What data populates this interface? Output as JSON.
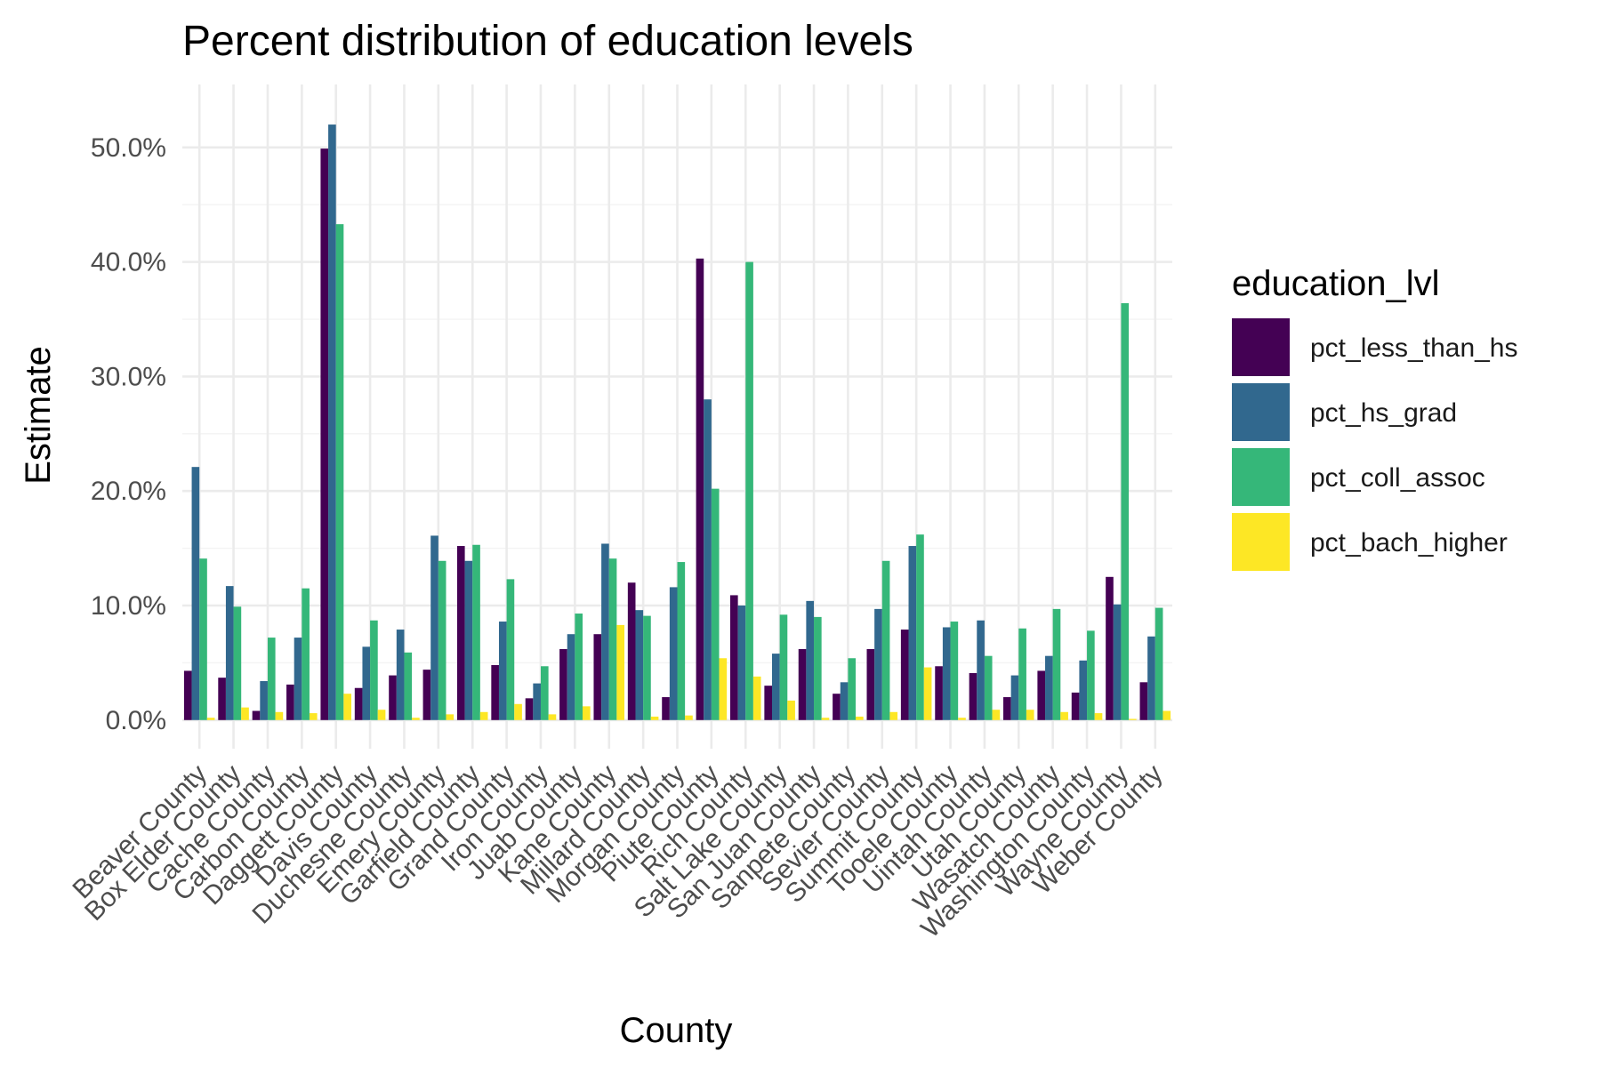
{
  "chart_data": {
    "type": "bar",
    "title": "Percent distribution of education levels",
    "xlabel": "County",
    "ylabel": "Estimate",
    "ylim": [
      -2.5,
      55.5
    ],
    "yticks": [
      0,
      10,
      20,
      30,
      40,
      50
    ],
    "ytick_labels": [
      "0.0%",
      "10.0%",
      "20.0%",
      "30.0%",
      "40.0%",
      "50.0%"
    ],
    "grid": true,
    "legend_title": "education_lvl",
    "legend_position": "right",
    "categories": [
      "Beaver County",
      "Box Elder County",
      "Cache County",
      "Carbon County",
      "Daggett County",
      "Davis County",
      "Duchesne County",
      "Emery County",
      "Garfield County",
      "Grand County",
      "Iron County",
      "Juab County",
      "Kane County",
      "Millard County",
      "Morgan County",
      "Piute County",
      "Rich County",
      "Salt Lake County",
      "San Juan County",
      "Sanpete County",
      "Sevier County",
      "Summit County",
      "Tooele County",
      "Uintah County",
      "Utah County",
      "Wasatch County",
      "Washington County",
      "Wayne County",
      "Weber County"
    ],
    "series": [
      {
        "name": "pct_less_than_hs",
        "color": "#440154",
        "values": [
          4.3,
          3.7,
          0.8,
          3.1,
          49.9,
          2.8,
          3.9,
          4.4,
          15.2,
          4.8,
          1.9,
          6.2,
          7.5,
          12.0,
          2.0,
          40.3,
          10.9,
          3.0,
          6.2,
          2.3,
          6.2,
          7.9,
          4.7,
          4.1,
          2.0,
          4.3,
          2.4,
          12.5,
          3.3
        ]
      },
      {
        "name": "pct_hs_grad",
        "color": "#31688e",
        "values": [
          22.1,
          11.7,
          3.4,
          7.2,
          52.0,
          6.4,
          7.9,
          16.1,
          13.9,
          8.6,
          3.2,
          7.5,
          15.4,
          9.6,
          11.6,
          28.0,
          10.0,
          5.8,
          10.4,
          3.3,
          9.7,
          15.2,
          8.1,
          8.7,
          3.9,
          5.6,
          5.2,
          10.1,
          7.3
        ]
      },
      {
        "name": "pct_coll_assoc",
        "color": "#35b779",
        "values": [
          14.1,
          9.9,
          7.2,
          11.5,
          43.3,
          8.7,
          5.9,
          13.9,
          15.3,
          12.3,
          4.7,
          9.3,
          14.1,
          9.1,
          13.8,
          20.2,
          40.0,
          9.2,
          9.0,
          5.4,
          13.9,
          16.2,
          8.6,
          5.6,
          8.0,
          9.7,
          7.8,
          36.4,
          9.8
        ]
      },
      {
        "name": "pct_bach_higher",
        "color": "#fde725",
        "values": [
          0.2,
          1.1,
          0.7,
          0.6,
          2.3,
          0.9,
          0.2,
          0.5,
          0.7,
          1.4,
          0.5,
          1.2,
          8.3,
          0.3,
          0.4,
          5.4,
          3.8,
          1.7,
          0.2,
          0.3,
          0.7,
          4.6,
          0.2,
          0.9,
          0.9,
          0.7,
          0.6,
          0.1,
          0.8
        ]
      }
    ]
  }
}
